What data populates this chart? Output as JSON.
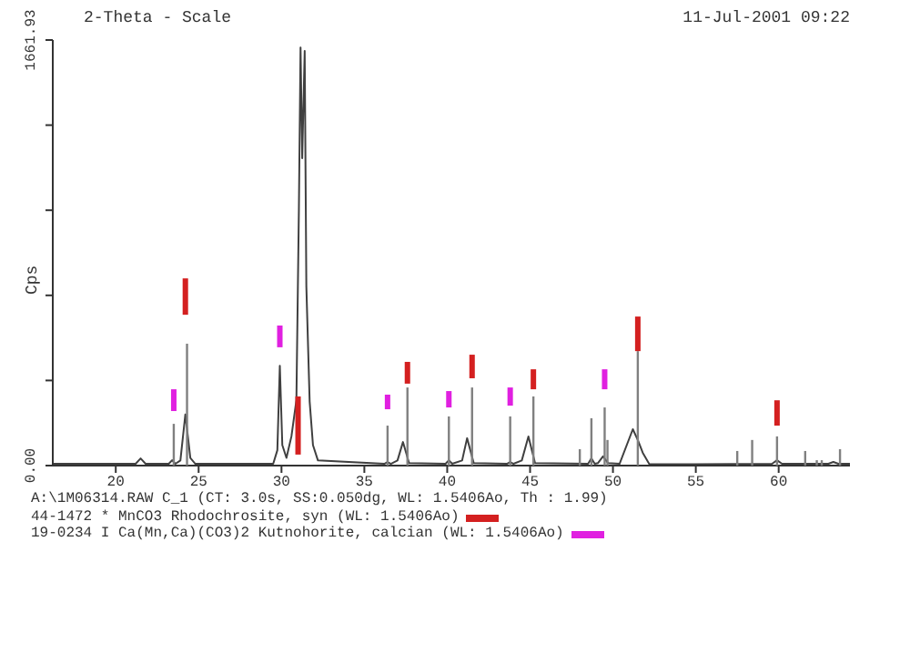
{
  "chart_data": {
    "type": "line",
    "xlabel": "2-Theta - Scale",
    "ylabel": "Cps",
    "annotations": [
      "11-Jul-2001 09:22",
      "A:\\1M06314.RAW C_1 (CT: 3.0s, SS:0.050dg, WL: 1.5406Ao, Th : 1.99)"
    ],
    "xlim": [
      16.2,
      64.3
    ],
    "xticks": [
      20,
      25,
      30,
      35,
      40,
      45,
      50,
      55,
      60
    ],
    "ylim": [
      0,
      1661.93
    ],
    "yticks": [
      {
        "value": 0,
        "label": "0.00"
      },
      {
        "value": 332.39,
        "label": null
      },
      {
        "value": 664.77,
        "label": null
      },
      {
        "value": 997.16,
        "label": null
      },
      {
        "value": 1329.54,
        "label": null
      },
      {
        "value": 1661.93,
        "label": "1661.93"
      }
    ],
    "legend": "bottom",
    "grid": false,
    "series": [
      {
        "color": "#404040",
        "x": [
          16.2,
          19,
          21.2,
          21.5,
          21.8,
          23.2,
          23.4,
          23.6,
          23.9,
          24.2,
          24.5,
          24.8,
          29.5,
          29.75,
          29.9,
          30.05,
          30.3,
          30.6,
          30.9,
          31.05,
          31.15,
          31.25,
          31.4,
          31.5,
          31.7,
          31.9,
          32.2,
          36.2,
          36.4,
          36.6,
          37.0,
          37.33,
          37.7,
          39.9,
          40.1,
          40.3,
          40.9,
          41.2,
          41.6,
          43.6,
          43.8,
          44.0,
          44.5,
          44.9,
          45.3,
          48.5,
          48.7,
          48.9,
          49.1,
          49.4,
          49.7,
          50.4,
          51.2,
          51.5,
          51.8,
          52.2,
          59.6,
          59.9,
          60.2,
          63.0,
          63.3,
          63.6,
          64.3
        ],
        "values": [
          7,
          7,
          7,
          28,
          7,
          7,
          21,
          7,
          20,
          200,
          30,
          7,
          7,
          60,
          390,
          80,
          30,
          114,
          256,
          1000,
          1633,
          1200,
          1619,
          700,
          250,
          80,
          20,
          7,
          14,
          7,
          20,
          92,
          10,
          7,
          21,
          7,
          20,
          107,
          10,
          7,
          14,
          7,
          20,
          114,
          10,
          7,
          28,
          7,
          10,
          36,
          10,
          7,
          142,
          100,
          50,
          5,
          7,
          21,
          7,
          7,
          14,
          7,
          7
        ]
      },
      {
        "type": "bar",
        "color": "#808080",
        "x": [
          23.5,
          24.3,
          36.4,
          37.6,
          40.1,
          41.5,
          43.8,
          45.2,
          48.0,
          48.7,
          49.5,
          49.67,
          51.5,
          57.5,
          58.4,
          59.9,
          61.6,
          62.3,
          62.6,
          63.7
        ],
        "values": [
          163,
          476,
          156,
          305,
          192,
          305,
          192,
          270,
          64,
          185,
          227,
          100,
          447,
          57,
          100,
          114,
          57,
          21,
          21,
          64
        ]
      },
      {
        "type": "bar",
        "name": "44-1472 * MnCO3 Rhodochrosite, syn (WL: 1.5406Ao)",
        "color": "#d42020",
        "x": [
          24.2,
          31.0,
          37.6,
          41.5,
          45.2,
          51.5,
          59.9
        ],
        "base": [
          589,
          43,
          320,
          341,
          298,
          447,
          156
        ],
        "values": [
          142,
          227,
          85,
          92,
          78,
          135,
          99
        ]
      },
      {
        "type": "bar",
        "name": "19-0234 I Ca(Mn,Ca)(CO3)2 Kutnohorite, calcian (WL: 1.5406Ao)",
        "color": "#e020e0",
        "x": [
          23.5,
          29.9,
          36.4,
          40.1,
          43.8,
          49.5
        ],
        "base": [
          213,
          462,
          220,
          227,
          234,
          298
        ],
        "values": [
          85,
          85,
          57,
          64,
          71,
          78
        ]
      }
    ]
  }
}
